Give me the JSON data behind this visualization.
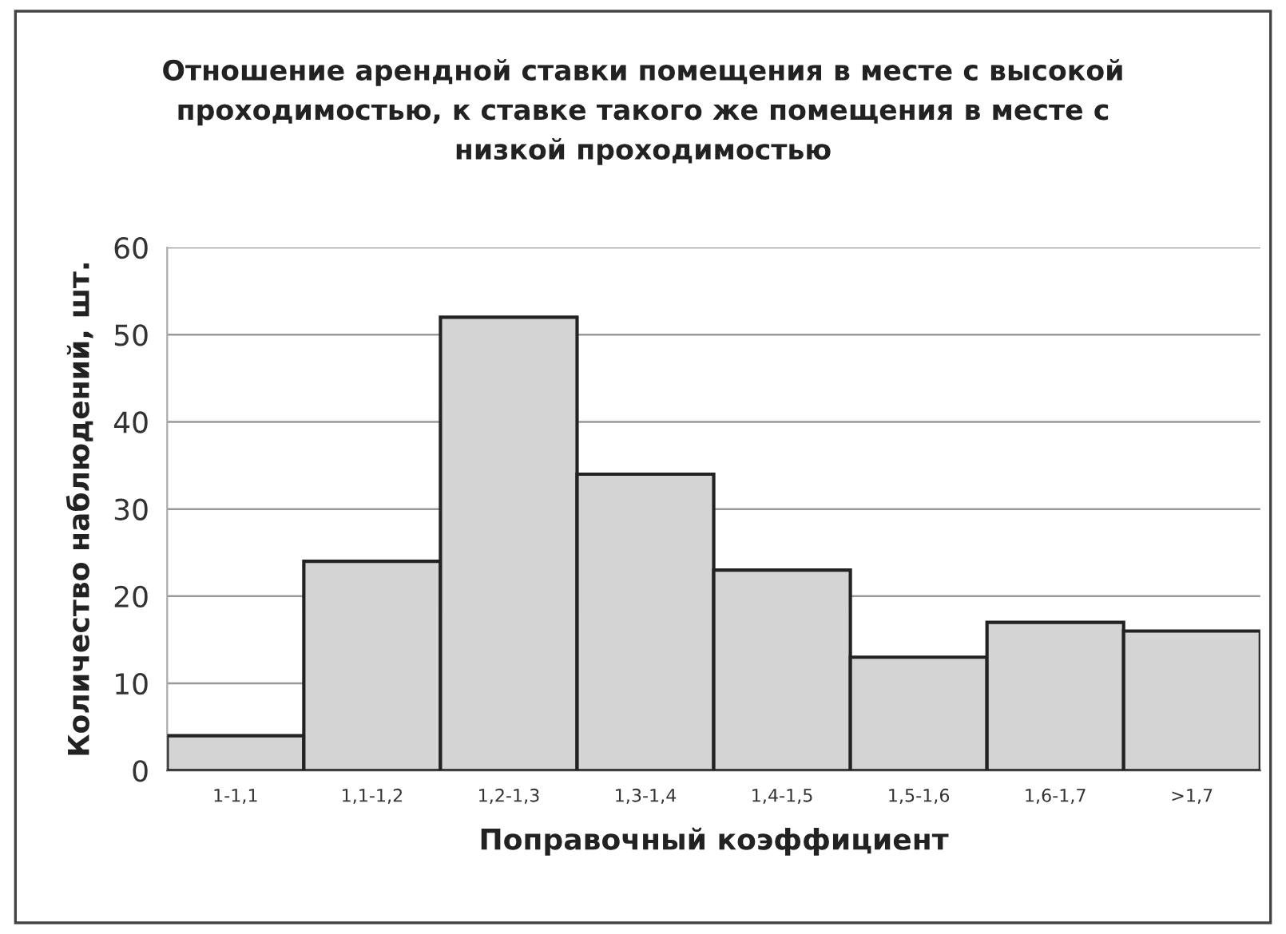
{
  "chart_data": {
    "type": "bar",
    "title": "Отношение арендной ставки помещения в месте с высокой проходимостью, к ставке такого же помещения в месте с низкой проходимостью",
    "xlabel": "Поправочный коэффициент",
    "ylabel": "Количество наблюдений, шт.",
    "categories": [
      "1-1,1",
      "1,1-1,2",
      "1,2-1,3",
      "1,3-1,4",
      "1,4-1,5",
      "1,5-1,6",
      "1,6-1,7",
      ">1,7"
    ],
    "values": [
      4,
      24,
      52,
      34,
      23,
      13,
      17,
      16
    ],
    "color": "#d4d4d4",
    "ylim": [
      0,
      60
    ],
    "yticks": [
      0,
      10,
      20,
      30,
      40,
      50,
      60
    ],
    "grid": "y",
    "legend": false
  }
}
